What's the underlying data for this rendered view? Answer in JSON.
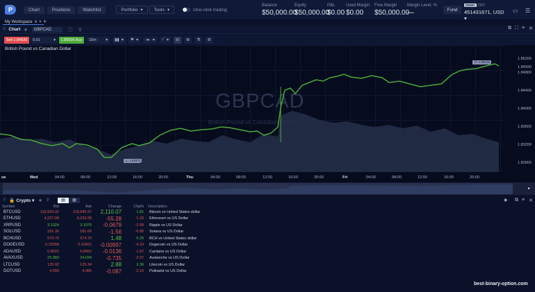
{
  "top": {
    "logo": "P",
    "nav": [
      "Chart",
      "Positions",
      "Watchlist"
    ],
    "dropdowns": [
      "Portfolio",
      "Tools"
    ],
    "one_click": "One-click trading",
    "stats": [
      {
        "label": "Balance",
        "value": "$50,000.00"
      },
      {
        "label": "Equity",
        "value": "$50,000.00"
      },
      {
        "label": "P&L",
        "value": "$0.00"
      },
      {
        "label": "Used Margin",
        "value": "$0.00"
      },
      {
        "label": "Free Margin",
        "value": "$50,000.00"
      },
      {
        "label": "Margin Level, %",
        "value": "—"
      }
    ],
    "fund": "Fund",
    "demo": "DEMO",
    "cfd": "CFD",
    "account": "451431671, USD ▾"
  },
  "workspace": {
    "tab": "My Workspace"
  },
  "chart_panel": {
    "title": "Chart",
    "symbol": "GBPCAD",
    "sell": "Sell 1.84930",
    "qty": "0.01",
    "buy": "1.85006 Buy",
    "timeframe": "15m",
    "pair_name": "British Pound vs Canadian Dollar",
    "watermark": "GBPCAD",
    "watermark_sub": "British Pound vs Canadian Dollar",
    "high_label": "H: 1.85125",
    "low_label": "L: 1.82873",
    "y_ticks": [
      "1.85200",
      "1.84930",
      "1.84800",
      "1.84400",
      "1.84000",
      "1.83600",
      "1.83200",
      "1.82800"
    ],
    "x_ticks": [
      "ue",
      "Wed",
      "04:00",
      "08:00",
      "12:00",
      "16:00",
      "20:00",
      "Thu",
      "04:00",
      "08:00",
      "12:00",
      "16:00",
      "20:00",
      "Fri",
      "04:00",
      "08:00",
      "12:00",
      "16:00",
      "20:00"
    ]
  },
  "watchlist": {
    "name": "Crypto",
    "columns": [
      "Symbol",
      "Bid",
      "Ask",
      "Change",
      "Chg%",
      "Description"
    ],
    "rows": [
      {
        "symbol": "BTCUSD",
        "bid": "118,924.32",
        "ask": "118,940.97",
        "change": "2,110.07",
        "pct": "1.81",
        "desc": "Bitcoin vs United States dollar",
        "bidc": "r",
        "askc": "r",
        "chc": "g"
      },
      {
        "symbol": "ETHUSD",
        "bid": "4,227.08",
        "ask": "4,229.08",
        "change": "-55.28",
        "pct": "-1.29",
        "desc": "Ethereum vs US Dollar",
        "bidc": "r",
        "askc": "r",
        "chc": "r"
      },
      {
        "symbol": "XRPUSD",
        "bid": "3.1924",
        "ask": "3.1975",
        "change": "-0.0679",
        "pct": "-2.08",
        "desc": "Ripple vs US Dollar",
        "bidc": "g",
        "askc": "g",
        "chc": "r"
      },
      {
        "symbol": "SOLUSD",
        "bid": "181.35",
        "ask": "181.66",
        "change": "-1.56",
        "pct": "-0.85",
        "desc": "Solana vs US Dollar",
        "bidc": "r",
        "askc": "r",
        "chc": "r"
      },
      {
        "symbol": "BCHUSD",
        "bid": "573.79",
        "ask": "574.70",
        "change": "1.48",
        "pct": "0.25",
        "desc": "BCH vs United States dollar",
        "bidc": "r",
        "askc": "r",
        "chc": "g"
      },
      {
        "symbol": "DOGEUSD",
        "bid": "0.23304",
        "ask": "0.23421",
        "change": "-0.00997",
        "pct": "-4.10",
        "desc": "Dogecoin vs US Dollar",
        "bidc": "r",
        "askc": "r",
        "chc": "r"
      },
      {
        "symbol": "ADAUSD",
        "bid": "0.8022",
        "ask": "0.8062",
        "change": "-0.0136",
        "pct": "-1.67",
        "desc": "Cardano vs US Dollar",
        "bidc": "r",
        "askc": "r",
        "chc": "r"
      },
      {
        "symbol": "AVAXUSD",
        "bid": "23.983",
        "ask": "24.034",
        "change": "-0.735",
        "pct": "-2.97",
        "desc": "Avalanche vs US Dollar",
        "bidc": "g",
        "askc": "g",
        "chc": "r"
      },
      {
        "symbol": "LTCUSD",
        "bid": "125.02",
        "ask": "125.34",
        "change": "2.88",
        "pct": "2.36",
        "desc": "Litecoin vs US Dollar",
        "bidc": "r",
        "askc": "r",
        "chc": "g"
      },
      {
        "symbol": "DOTUSD",
        "bid": "4.055",
        "ask": "4.085",
        "change": "-0.087",
        "pct": "-2.10",
        "desc": "Polkadot vs US Dollar",
        "bidc": "r",
        "askc": "r",
        "chc": "r"
      }
    ]
  },
  "footer_watermark": "best-binary-option.com"
}
